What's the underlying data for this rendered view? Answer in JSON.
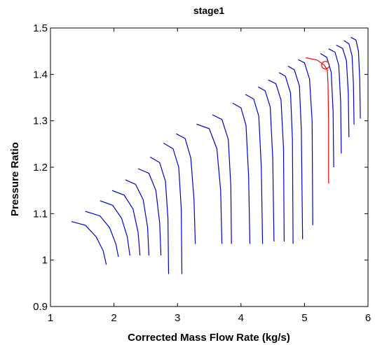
{
  "chart_data": {
    "type": "line",
    "title": "stage1",
    "xlabel": "Corrected Mass Flow Rate (kg/s)",
    "ylabel": "Pressure Ratio",
    "xlim": [
      1,
      6
    ],
    "ylim": [
      0.9,
      1.5
    ],
    "xticks": [
      1,
      2,
      3,
      4,
      5,
      6
    ],
    "yticks": [
      0.9,
      1,
      1.1,
      1.2,
      1.3,
      1.4,
      1.5
    ],
    "grid": false,
    "legend": "none",
    "colors": {
      "speed_line": "#0000cc",
      "operating_line": "#ff0000"
    },
    "series": [
      {
        "x": [
          1.33,
          1.55,
          1.72,
          1.83,
          1.88
        ],
        "y": [
          1.083,
          1.075,
          1.05,
          1.02,
          0.99
        ],
        "color": "#0000cc"
      },
      {
        "x": [
          1.55,
          1.78,
          1.93,
          2.03,
          2.07
        ],
        "y": [
          1.105,
          1.095,
          1.07,
          1.035,
          1.007
        ],
        "color": "#0000cc"
      },
      {
        "x": [
          1.78,
          1.98,
          2.12,
          2.21,
          2.25
        ],
        "y": [
          1.128,
          1.118,
          1.09,
          1.05,
          1.01
        ],
        "color": "#0000cc"
      },
      {
        "x": [
          1.97,
          2.16,
          2.3,
          2.38,
          2.41
        ],
        "y": [
          1.15,
          1.14,
          1.11,
          1.06,
          1.01
        ],
        "color": "#0000cc"
      },
      {
        "x": [
          2.18,
          2.34,
          2.46,
          2.53,
          2.55
        ],
        "y": [
          1.173,
          1.163,
          1.13,
          1.07,
          1.01
        ],
        "color": "#0000cc"
      },
      {
        "x": [
          2.38,
          2.55,
          2.66,
          2.72,
          2.74
        ],
        "y": [
          1.197,
          1.187,
          1.15,
          1.08,
          1.01
        ],
        "color": "#0000cc"
      },
      {
        "x": [
          2.57,
          2.72,
          2.81,
          2.85,
          2.86
        ],
        "y": [
          1.222,
          1.21,
          1.17,
          1.09,
          0.97
        ],
        "color": "#0000cc"
      },
      {
        "x": [
          2.78,
          2.93,
          3.02,
          3.06,
          3.07
        ],
        "y": [
          1.252,
          1.24,
          1.2,
          1.11,
          0.97
        ],
        "color": "#0000cc"
      },
      {
        "x": [
          2.98,
          3.12,
          3.21,
          3.26,
          3.28
        ],
        "y": [
          1.272,
          1.262,
          1.22,
          1.13,
          1.035
        ],
        "color": "#0000cc"
      },
      {
        "x": [
          3.3,
          3.5,
          3.62,
          3.68,
          3.7
        ],
        "y": [
          1.293,
          1.283,
          1.24,
          1.15,
          1.035
        ],
        "color": "#0000cc"
      },
      {
        "x": [
          3.55,
          3.7,
          3.8,
          3.84,
          3.85
        ],
        "y": [
          1.313,
          1.303,
          1.26,
          1.16,
          1.035
        ],
        "color": "#0000cc"
      },
      {
        "x": [
          3.87,
          4.0,
          4.08,
          4.12,
          4.14
        ],
        "y": [
          1.338,
          1.328,
          1.29,
          1.18,
          1.035
        ],
        "color": "#0000cc"
      },
      {
        "x": [
          4.07,
          4.2,
          4.28,
          4.32,
          4.34
        ],
        "y": [
          1.357,
          1.347,
          1.31,
          1.2,
          1.035
        ],
        "color": "#0000cc"
      },
      {
        "x": [
          4.27,
          4.38,
          4.46,
          4.5,
          4.52
        ],
        "y": [
          1.373,
          1.365,
          1.33,
          1.22,
          1.04
        ],
        "color": "#0000cc"
      },
      {
        "x": [
          4.43,
          4.55,
          4.63,
          4.67,
          4.68
        ],
        "y": [
          1.388,
          1.38,
          1.345,
          1.24,
          1.04
        ],
        "color": "#0000cc"
      },
      {
        "x": [
          4.6,
          4.7,
          4.78,
          4.81,
          4.82
        ],
        "y": [
          1.404,
          1.396,
          1.36,
          1.26,
          1.035
        ],
        "color": "#0000cc"
      },
      {
        "x": [
          4.74,
          4.84,
          4.92,
          4.95,
          4.97
        ],
        "y": [
          1.418,
          1.41,
          1.375,
          1.28,
          1.045
        ],
        "color": "#0000cc"
      },
      {
        "x": [
          4.9,
          5.0,
          5.08,
          5.12,
          5.13
        ],
        "y": [
          1.432,
          1.425,
          1.39,
          1.3,
          1.075
        ],
        "color": "#0000cc"
      },
      {
        "x": [
          5.25,
          5.35,
          5.42,
          5.45,
          5.46
        ],
        "y": [
          1.445,
          1.437,
          1.405,
          1.32,
          1.2
        ],
        "color": "#0000cc"
      },
      {
        "x": [
          5.38,
          5.48,
          5.54,
          5.57,
          5.58
        ],
        "y": [
          1.455,
          1.448,
          1.42,
          1.34,
          1.23
        ],
        "color": "#0000cc"
      },
      {
        "x": [
          5.5,
          5.6,
          5.66,
          5.69,
          5.7
        ],
        "y": [
          1.463,
          1.456,
          1.43,
          1.36,
          1.265
        ],
        "color": "#0000cc"
      },
      {
        "x": [
          5.62,
          5.7,
          5.75,
          5.77,
          5.78
        ],
        "y": [
          1.473,
          1.466,
          1.44,
          1.38,
          1.292
        ],
        "color": "#0000cc"
      },
      {
        "x": [
          5.73,
          5.81,
          5.85,
          5.87,
          5.88
        ],
        "y": [
          1.48,
          1.474,
          1.45,
          1.39,
          1.305
        ],
        "color": "#0000cc"
      },
      {
        "x": [
          5.02,
          5.2,
          5.31,
          5.36,
          5.37,
          5.38,
          5.38
        ],
        "y": [
          1.436,
          1.431,
          1.42,
          1.41,
          1.38,
          1.3,
          1.165
        ],
        "color": "#ff0000"
      }
    ],
    "marker": {
      "x": 5.33,
      "y": 1.42,
      "shape": "circle",
      "color": "#ff0000"
    }
  }
}
